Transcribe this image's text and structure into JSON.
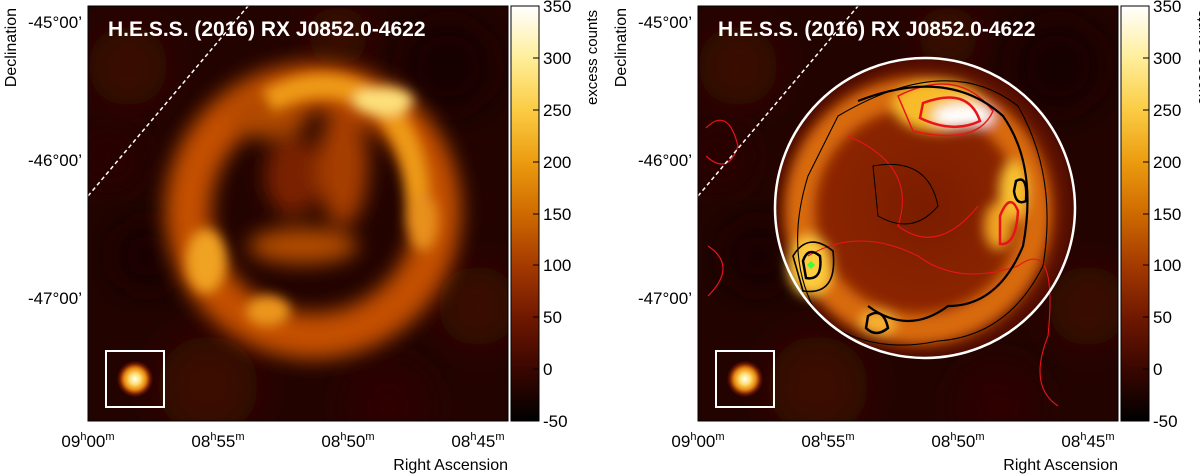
{
  "panels": [
    {
      "title": "H.E.S.S. (2016) RX J0852.0-4622",
      "overlay_contours": false,
      "dec_labels": [
        "-45°00’",
        "-46°00’",
        "-47°00’"
      ],
      "ra_labels": [
        "09h00m",
        "08h55m",
        "08h50m",
        "08h45m"
      ],
      "xlabel": "Right Ascension",
      "ylabel": "Declination",
      "colorbar_label": "excess counts",
      "colorbar_ticks": [
        "350",
        "300",
        "250",
        "200",
        "150",
        "100",
        "50",
        "0",
        "-50"
      ]
    },
    {
      "title": "H.E.S.S. (2016) RX J0852.0-4622",
      "overlay_contours": true,
      "dec_labels": [
        "-45°00’",
        "-46°00’",
        "-47°00’"
      ],
      "ra_labels": [
        "09h00m",
        "08h55m",
        "08h50m",
        "08h45m"
      ],
      "xlabel": "Right Ascension",
      "ylabel": "Declination",
      "colorbar_label": "excess counts",
      "colorbar_ticks": [
        "350",
        "300",
        "250",
        "200",
        "150",
        "100",
        "50",
        "0",
        "-50"
      ]
    }
  ],
  "colors": {
    "colormap": [
      "#000000",
      "#3a0600",
      "#701800",
      "#a43a00",
      "#cf6a00",
      "#ec9c10",
      "#fbcc44",
      "#ffee9a",
      "#ffffff"
    ],
    "contour_black": "#000000",
    "contour_red": "#e8141a",
    "circle": "#ffffff",
    "marker": "#3cff3c"
  }
}
